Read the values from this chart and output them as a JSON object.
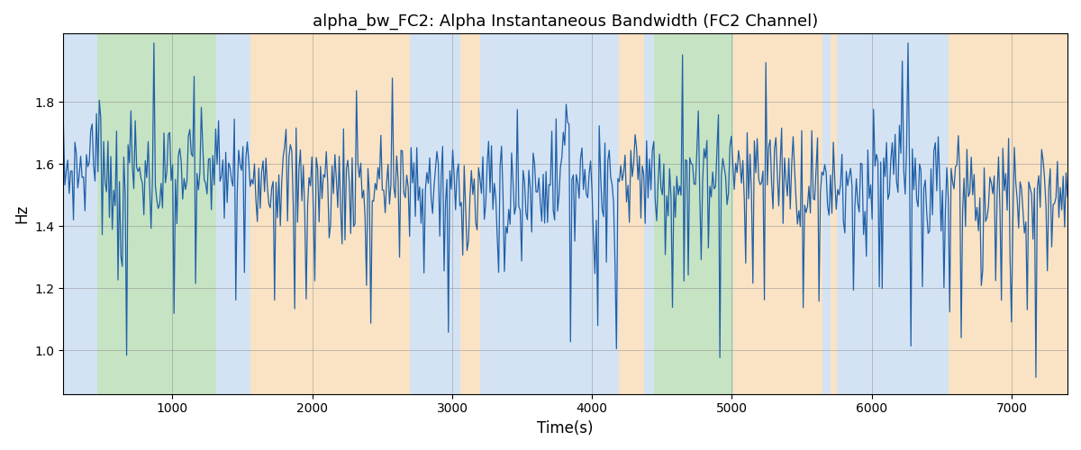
{
  "title": "alpha_bw_FC2: Alpha Instantaneous Bandwidth (FC2 Channel)",
  "xlabel": "Time(s)",
  "ylabel": "Hz",
  "xlim": [
    220,
    7400
  ],
  "ylim": [
    0.86,
    2.02
  ],
  "yticks": [
    1.0,
    1.2,
    1.4,
    1.6,
    1.8
  ],
  "xticks": [
    1000,
    2000,
    3000,
    4000,
    5000,
    6000,
    7000
  ],
  "line_color": "#2060a8",
  "line_width": 0.9,
  "bg_regions": [
    {
      "xmin": 220,
      "xmax": 460,
      "color": "#aac8e8",
      "alpha": 0.5
    },
    {
      "xmin": 460,
      "xmax": 1310,
      "color": "#8ec88a",
      "alpha": 0.5
    },
    {
      "xmin": 1310,
      "xmax": 1560,
      "color": "#aac8e8",
      "alpha": 0.5
    },
    {
      "xmin": 1560,
      "xmax": 2700,
      "color": "#f5c98a",
      "alpha": 0.5
    },
    {
      "xmin": 2700,
      "xmax": 3060,
      "color": "#aac8e8",
      "alpha": 0.5
    },
    {
      "xmin": 3060,
      "xmax": 3200,
      "color": "#f5c98a",
      "alpha": 0.5
    },
    {
      "xmin": 3200,
      "xmax": 4190,
      "color": "#aac8e8",
      "alpha": 0.5
    },
    {
      "xmin": 4190,
      "xmax": 4370,
      "color": "#f5c98a",
      "alpha": 0.5
    },
    {
      "xmin": 4370,
      "xmax": 4440,
      "color": "#aac8e8",
      "alpha": 0.5
    },
    {
      "xmin": 4440,
      "xmax": 5010,
      "color": "#8ec88a",
      "alpha": 0.5
    },
    {
      "xmin": 5010,
      "xmax": 5650,
      "color": "#f5c98a",
      "alpha": 0.5
    },
    {
      "xmin": 5650,
      "xmax": 5705,
      "color": "#aac8e8",
      "alpha": 0.5
    },
    {
      "xmin": 5705,
      "xmax": 5750,
      "color": "#f5c98a",
      "alpha": 0.5
    },
    {
      "xmin": 5750,
      "xmax": 6550,
      "color": "#aac8e8",
      "alpha": 0.5
    },
    {
      "xmin": 6550,
      "xmax": 7400,
      "color": "#f5c98a",
      "alpha": 0.5
    }
  ],
  "figsize": [
    12.0,
    5.0
  ],
  "dpi": 100
}
